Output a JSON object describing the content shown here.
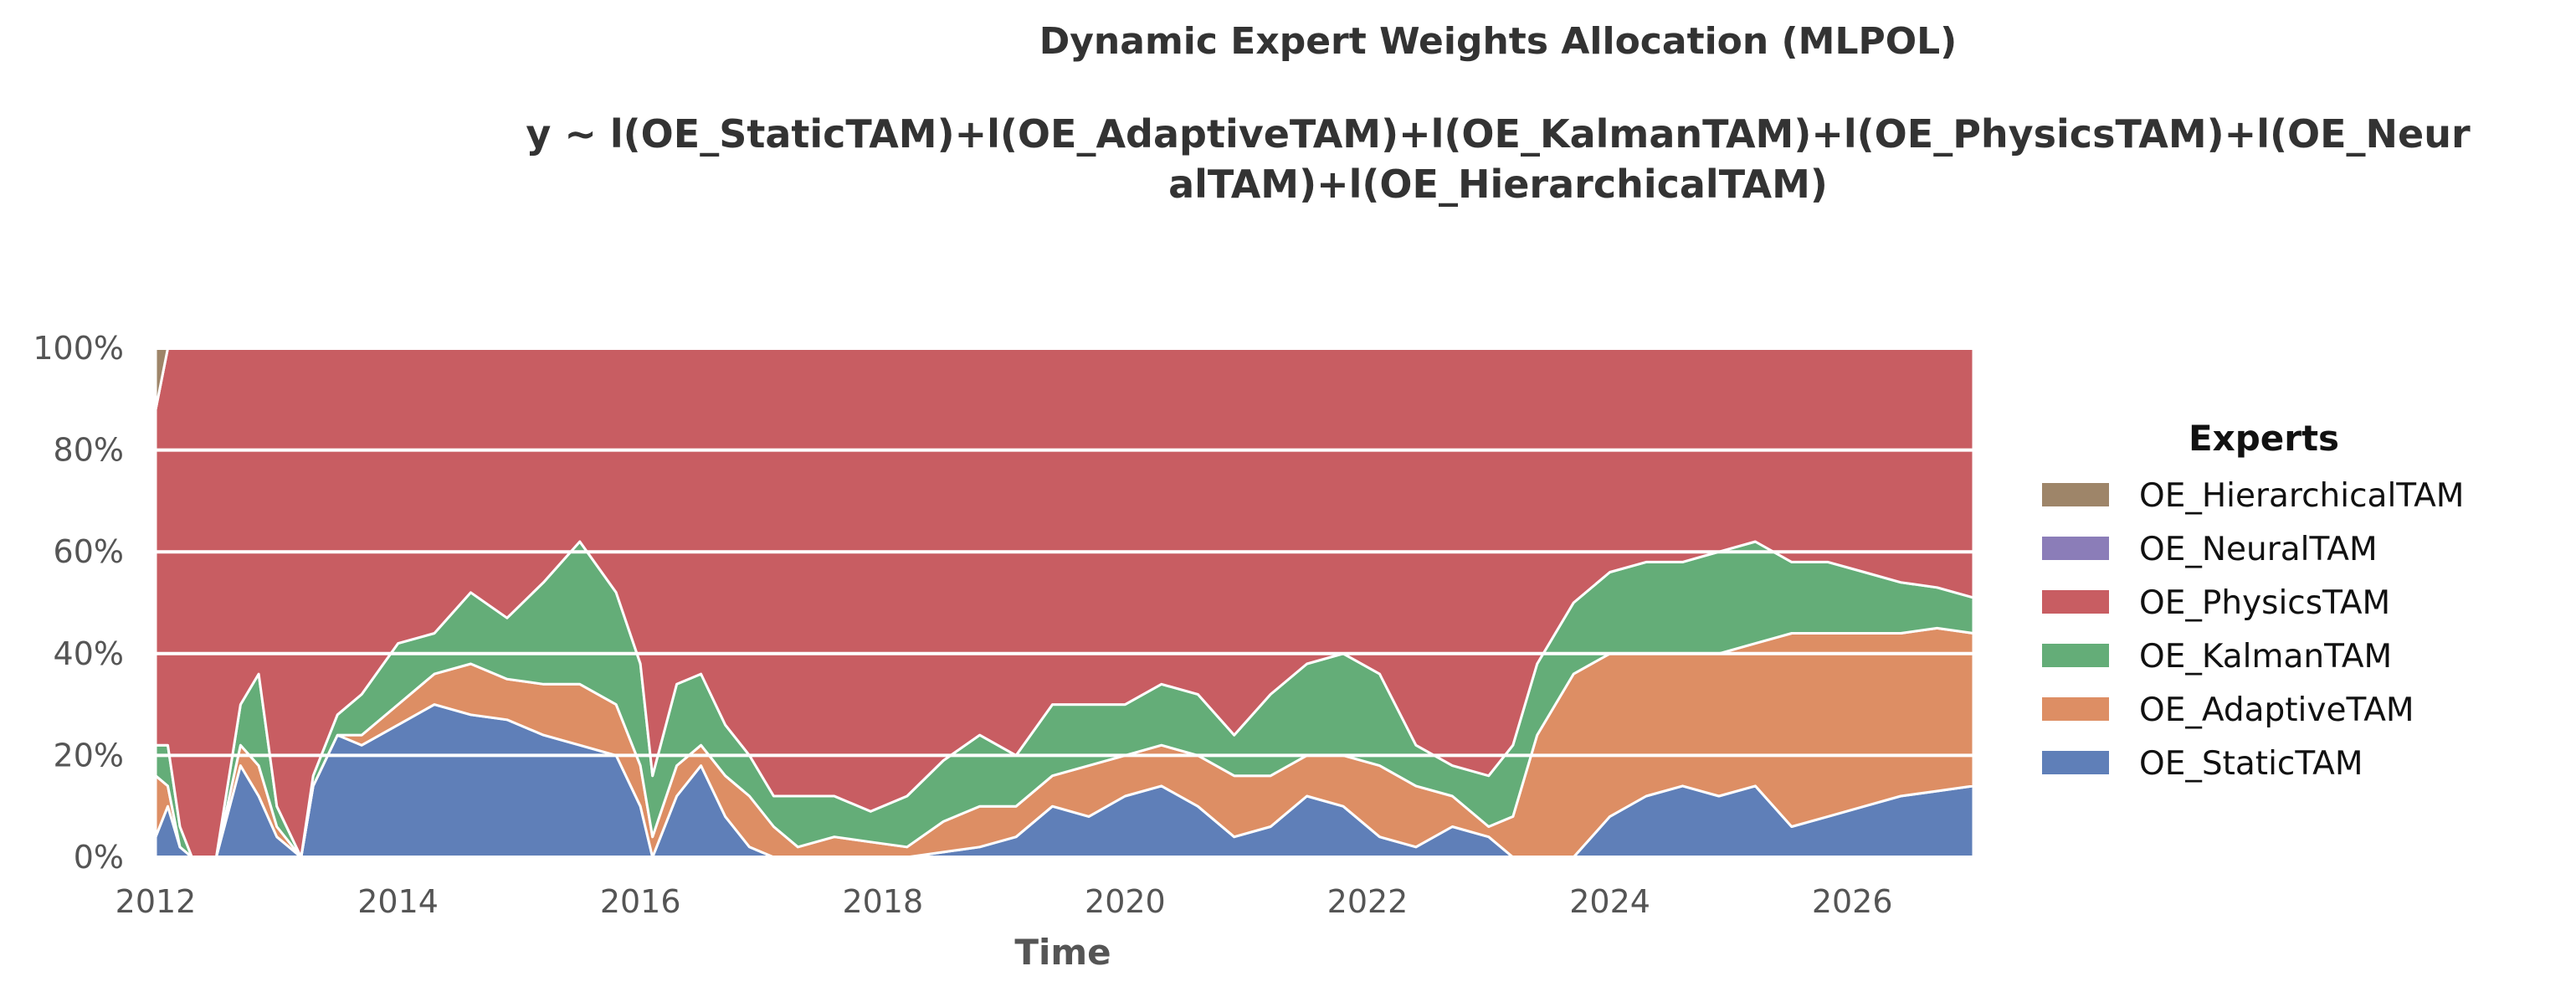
{
  "chart_data": {
    "type": "area",
    "stacked": true,
    "normalized": true,
    "title": "Dynamic Expert Weights Allocation (MLPOL)",
    "subtitle_lines": [
      "y ~ l(OE_StaticTAM)+l(OE_AdaptiveTAM)+l(OE_KalmanTAM)+l(OE_PhysicsTAM)+l(OE_Neur",
      "alTAM)+l(OE_HierarchicalTAM)"
    ],
    "xlabel": "Time",
    "ylabel": "",
    "xlim": [
      2012.0,
      2027.0
    ],
    "ylim": [
      0,
      100
    ],
    "x_ticks": [
      "2012",
      "2014",
      "2016",
      "2018",
      "2020",
      "2022",
      "2024",
      "2026"
    ],
    "y_ticks": [
      "0%",
      "20%",
      "40%",
      "60%",
      "80%",
      "100%"
    ],
    "grid": "horizontal",
    "legend": {
      "title": "Experts",
      "placement": "right",
      "entries": [
        "OE_HierarchicalTAM",
        "OE_NeuralTAM",
        "OE_PhysicsTAM",
        "OE_KalmanTAM",
        "OE_AdaptiveTAM",
        "OE_StaticTAM"
      ]
    },
    "x": [
      2012.0,
      2012.1,
      2012.2,
      2012.3,
      2012.5,
      2012.7,
      2012.85,
      2013.0,
      2013.2,
      2013.3,
      2013.5,
      2013.7,
      2014.0,
      2014.3,
      2014.6,
      2014.9,
      2015.2,
      2015.5,
      2015.8,
      2016.0,
      2016.1,
      2016.3,
      2016.5,
      2016.7,
      2016.9,
      2017.1,
      2017.3,
      2017.6,
      2017.9,
      2018.2,
      2018.5,
      2018.8,
      2019.1,
      2019.4,
      2019.7,
      2020.0,
      2020.3,
      2020.6,
      2020.9,
      2021.2,
      2021.5,
      2021.8,
      2022.1,
      2022.4,
      2022.7,
      2023.0,
      2023.2,
      2023.4,
      2023.7,
      2024.0,
      2024.3,
      2024.6,
      2024.9,
      2025.2,
      2025.5,
      2025.8,
      2026.1,
      2026.4,
      2026.7,
      2027.0
    ],
    "series": [
      {
        "name": "OE_StaticTAM",
        "color": "#5f7fb8",
        "values": [
          4,
          10,
          2,
          0,
          0,
          18,
          12,
          4,
          0,
          14,
          24,
          22,
          26,
          30,
          28,
          27,
          24,
          22,
          20,
          10,
          0,
          12,
          18,
          8,
          2,
          0,
          0,
          0,
          0,
          0,
          1,
          2,
          4,
          10,
          8,
          12,
          14,
          10,
          4,
          6,
          12,
          10,
          4,
          2,
          6,
          4,
          0,
          0,
          0,
          8,
          12,
          14,
          12,
          14,
          6,
          8,
          10,
          12,
          13,
          14
        ]
      },
      {
        "name": "OE_AdaptiveTAM",
        "color": "#dd8e64",
        "values": [
          12,
          4,
          0,
          0,
          0,
          4,
          6,
          2,
          0,
          0,
          0,
          2,
          4,
          6,
          10,
          8,
          10,
          12,
          10,
          8,
          4,
          6,
          4,
          8,
          10,
          6,
          2,
          4,
          3,
          2,
          6,
          8,
          6,
          6,
          10,
          8,
          8,
          10,
          12,
          10,
          8,
          10,
          14,
          12,
          6,
          2,
          8,
          24,
          36,
          32,
          28,
          26,
          28,
          28,
          38,
          36,
          34,
          32,
          32,
          30
        ]
      },
      {
        "name": "OE_KalmanTAM",
        "color": "#64ad78",
        "values": [
          6,
          8,
          4,
          0,
          0,
          8,
          18,
          4,
          0,
          2,
          4,
          8,
          12,
          8,
          14,
          12,
          20,
          28,
          22,
          20,
          12,
          16,
          14,
          10,
          8,
          6,
          10,
          8,
          6,
          10,
          12,
          14,
          10,
          14,
          12,
          10,
          12,
          12,
          8,
          16,
          18,
          20,
          18,
          8,
          6,
          10,
          14,
          14,
          14,
          16,
          18,
          18,
          20,
          20,
          14,
          14,
          12,
          10,
          8,
          7
        ]
      },
      {
        "name": "OE_PhysicsTAM",
        "color": "#c85d62",
        "values": [
          66,
          78,
          94,
          100,
          100,
          70,
          64,
          90,
          100,
          84,
          72,
          68,
          58,
          56,
          48,
          53,
          46,
          38,
          48,
          62,
          84,
          66,
          64,
          74,
          80,
          88,
          88,
          88,
          91,
          88,
          81,
          76,
          80,
          70,
          70,
          70,
          66,
          68,
          76,
          68,
          62,
          60,
          64,
          78,
          82,
          84,
          78,
          62,
          50,
          44,
          42,
          42,
          40,
          38,
          42,
          42,
          44,
          46,
          47,
          49
        ]
      },
      {
        "name": "OE_NeuralTAM",
        "color": "#8b7db8",
        "values": [
          0,
          0,
          0,
          0,
          0,
          0,
          0,
          0,
          0,
          0,
          0,
          0,
          0,
          0,
          0,
          0,
          0,
          0,
          0,
          0,
          0,
          0,
          0,
          0,
          0,
          0,
          0,
          0,
          0,
          0,
          0,
          0,
          0,
          0,
          0,
          0,
          0,
          0,
          0,
          0,
          0,
          0,
          0,
          0,
          0,
          0,
          0,
          0,
          0,
          0,
          0,
          0,
          0,
          0,
          0,
          0,
          0,
          0,
          0,
          0
        ]
      },
      {
        "name": "OE_HierarchicalTAM",
        "color": "#9e8569",
        "values": [
          12,
          0,
          0,
          0,
          0,
          0,
          0,
          0,
          0,
          0,
          0,
          0,
          0,
          0,
          0,
          0,
          0,
          0,
          0,
          0,
          0,
          0,
          0,
          0,
          0,
          0,
          0,
          0,
          0,
          0,
          0,
          0,
          0,
          0,
          0,
          0,
          0,
          0,
          0,
          0,
          0,
          0,
          0,
          0,
          0,
          0,
          0,
          0,
          0,
          0,
          0,
          0,
          0,
          0,
          0,
          0,
          0,
          0,
          0,
          0
        ]
      }
    ]
  }
}
